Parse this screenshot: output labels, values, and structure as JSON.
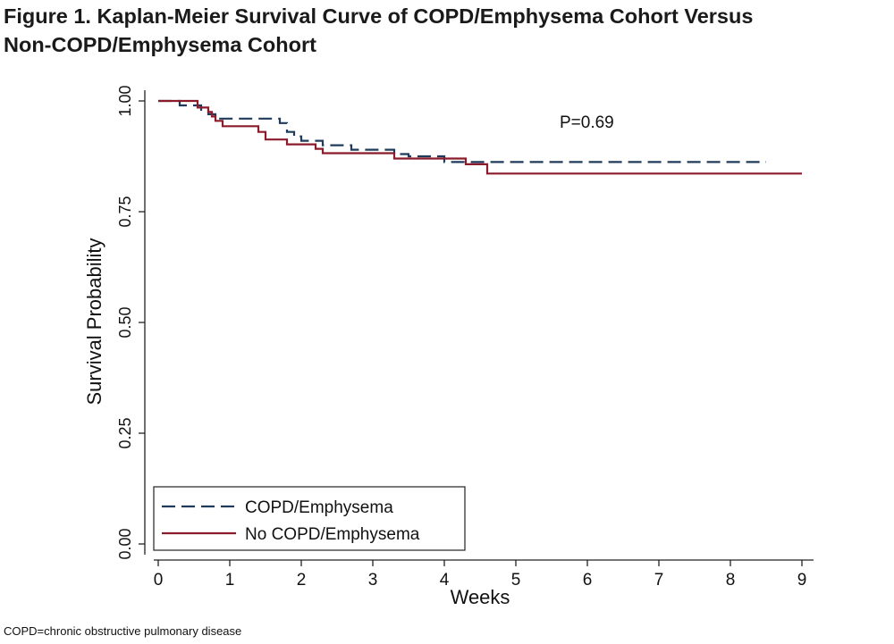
{
  "figure": {
    "title_line1": "Figure 1. Kaplan-Meier Survival Curve of COPD/Emphysema Cohort Versus",
    "title_line2": "Non-COPD/Emphysema Cohort",
    "footnote": "COPD=chronic obstructive pulmonary disease"
  },
  "chart_data": {
    "type": "line",
    "subtype": "kaplan-meier-step",
    "title": "Figure 1. Kaplan-Meier Survival Curve of COPD/Emphysema Cohort Versus Non-COPD/Emphysema Cohort",
    "xlabel": "Weeks",
    "ylabel": "Survival Probability",
    "xlim": [
      0,
      9
    ],
    "ylim": [
      0,
      1
    ],
    "xticks": [
      "0",
      "1",
      "2",
      "3",
      "4",
      "5",
      "6",
      "7",
      "8",
      "9"
    ],
    "yticks": [
      "0.00",
      "0.25",
      "0.50",
      "0.75",
      "1.00"
    ],
    "grid": false,
    "annotation": "P=0.69",
    "legend_position": "bottom-left",
    "series": [
      {
        "name": "COPD/Emphysema",
        "style": "dashed",
        "color": "#1f3b5c",
        "x": [
          0,
          0.3,
          0.6,
          0.7,
          0.8,
          1.7,
          1.8,
          1.9,
          2.0,
          2.3,
          2.7,
          3.3,
          3.5,
          4.0,
          8.5
        ],
        "y": [
          1.0,
          0.99,
          0.98,
          0.97,
          0.96,
          0.95,
          0.93,
          0.92,
          0.91,
          0.9,
          0.89,
          0.88,
          0.875,
          0.862,
          0.862
        ]
      },
      {
        "name": "No COPD/Emphysema",
        "style": "solid",
        "color": "#8b1a2b",
        "x": [
          0,
          0.55,
          0.7,
          0.75,
          0.8,
          0.9,
          1.4,
          1.5,
          1.8,
          2.2,
          2.3,
          3.3,
          4.3,
          4.6,
          9.0
        ],
        "y": [
          1.0,
          0.985,
          0.975,
          0.965,
          0.955,
          0.943,
          0.93,
          0.913,
          0.902,
          0.892,
          0.882,
          0.87,
          0.857,
          0.836,
          0.836
        ]
      }
    ]
  }
}
